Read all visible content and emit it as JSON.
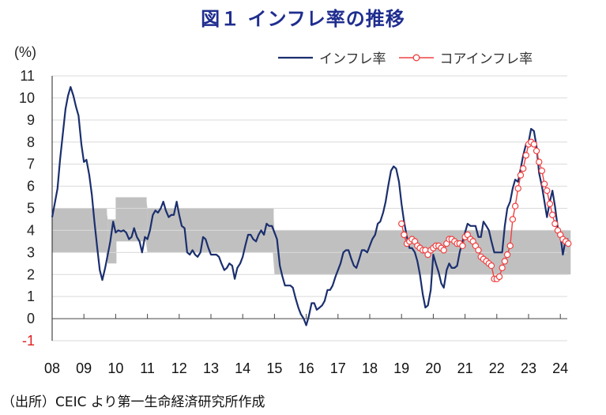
{
  "title": "図１ インフレ率の推移",
  "source": "（出所）CEIC より第一生命経済研究所作成",
  "colors": {
    "title": "#1f2d8f",
    "inflation": "#1b2f6e",
    "core": "#f04040",
    "band": "#c0c0c0",
    "grid": "#d9d9d9",
    "negative_tick": "#e02020"
  },
  "chart_data": {
    "type": "line",
    "title": "図１ インフレ率の推移",
    "ylabel": "(%)",
    "xlabel": "",
    "ylim": [
      -1,
      11
    ],
    "xlim": [
      2008,
      2024.35
    ],
    "grid": true,
    "legend_position": "top-right",
    "y_ticks": [
      "11",
      "10",
      "9",
      "8",
      "7",
      "6",
      "5",
      "4",
      "3",
      "2",
      "1",
      "0",
      "-1"
    ],
    "x_ticks": [
      "08",
      "09",
      "10",
      "11",
      "12",
      "13",
      "14",
      "15",
      "16",
      "17",
      "18",
      "19",
      "20",
      "21",
      "22",
      "23",
      "24"
    ],
    "target_band": {
      "label": "target range",
      "segments": [
        {
          "x0": 2008.0,
          "x1": 2009.7,
          "low": 3.0,
          "high": 5.0
        },
        {
          "x0": 2009.75,
          "x1": 2010.0,
          "low": 2.5,
          "high": 4.5
        },
        {
          "x0": 2010.0,
          "x1": 2010.95,
          "low": 3.5,
          "high": 5.5
        },
        {
          "x0": 2011.0,
          "x1": 2014.95,
          "low": 3.0,
          "high": 5.0
        },
        {
          "x0": 2015.0,
          "x1": 2024.3,
          "low": 2.0,
          "high": 4.0
        }
      ]
    },
    "series": [
      {
        "name": "インフレ率",
        "points": [
          [
            2008.0,
            4.6
          ],
          [
            2008.08,
            5.2
          ],
          [
            2008.17,
            5.9
          ],
          [
            2008.25,
            7.2
          ],
          [
            2008.33,
            8.3
          ],
          [
            2008.42,
            9.5
          ],
          [
            2008.5,
            10.1
          ],
          [
            2008.58,
            10.5
          ],
          [
            2008.67,
            10.1
          ],
          [
            2008.75,
            9.6
          ],
          [
            2008.83,
            9.2
          ],
          [
            2008.92,
            7.9
          ],
          [
            2009.0,
            7.1
          ],
          [
            2009.08,
            7.2
          ],
          [
            2009.17,
            6.5
          ],
          [
            2009.25,
            5.6
          ],
          [
            2009.33,
            4.4
          ],
          [
            2009.42,
            3.2
          ],
          [
            2009.5,
            2.2
          ],
          [
            2009.58,
            1.75
          ],
          [
            2009.67,
            2.3
          ],
          [
            2009.75,
            2.9
          ],
          [
            2009.83,
            3.5
          ],
          [
            2009.92,
            4.4
          ],
          [
            2010.0,
            3.9
          ],
          [
            2010.08,
            4.0
          ],
          [
            2010.17,
            3.95
          ],
          [
            2010.25,
            4.0
          ],
          [
            2010.33,
            3.9
          ],
          [
            2010.42,
            3.6
          ],
          [
            2010.5,
            3.7
          ],
          [
            2010.58,
            4.1
          ],
          [
            2010.67,
            3.7
          ],
          [
            2010.75,
            3.5
          ],
          [
            2010.83,
            3.0
          ],
          [
            2010.92,
            3.7
          ],
          [
            2011.0,
            3.6
          ],
          [
            2011.08,
            4.0
          ],
          [
            2011.17,
            4.7
          ],
          [
            2011.25,
            4.9
          ],
          [
            2011.33,
            4.8
          ],
          [
            2011.42,
            5.0
          ],
          [
            2011.5,
            5.3
          ],
          [
            2011.58,
            4.9
          ],
          [
            2011.67,
            4.6
          ],
          [
            2011.75,
            4.7
          ],
          [
            2011.83,
            4.7
          ],
          [
            2011.92,
            5.3
          ],
          [
            2012.0,
            4.7
          ],
          [
            2012.08,
            4.2
          ],
          [
            2012.17,
            4.1
          ],
          [
            2012.25,
            3.0
          ],
          [
            2012.33,
            2.9
          ],
          [
            2012.42,
            3.1
          ],
          [
            2012.5,
            2.9
          ],
          [
            2012.58,
            2.8
          ],
          [
            2012.67,
            3.0
          ],
          [
            2012.75,
            3.7
          ],
          [
            2012.83,
            3.6
          ],
          [
            2012.92,
            3.2
          ],
          [
            2013.0,
            2.9
          ],
          [
            2013.08,
            2.9
          ],
          [
            2013.17,
            2.9
          ],
          [
            2013.25,
            2.8
          ],
          [
            2013.33,
            2.5
          ],
          [
            2013.42,
            2.2
          ],
          [
            2013.5,
            2.3
          ],
          [
            2013.58,
            2.5
          ],
          [
            2013.67,
            2.4
          ],
          [
            2013.75,
            1.8
          ],
          [
            2013.83,
            2.3
          ],
          [
            2013.92,
            2.5
          ],
          [
            2014.0,
            2.8
          ],
          [
            2014.08,
            3.3
          ],
          [
            2014.17,
            3.8
          ],
          [
            2014.25,
            3.8
          ],
          [
            2014.33,
            3.6
          ],
          [
            2014.42,
            3.5
          ],
          [
            2014.5,
            3.8
          ],
          [
            2014.58,
            4.0
          ],
          [
            2014.67,
            3.8
          ],
          [
            2014.75,
            4.3
          ],
          [
            2014.83,
            4.2
          ],
          [
            2014.92,
            4.2
          ],
          [
            2015.0,
            3.9
          ],
          [
            2015.08,
            3.6
          ],
          [
            2015.17,
            2.4
          ],
          [
            2015.25,
            1.9
          ],
          [
            2015.33,
            1.5
          ],
          [
            2015.42,
            1.5
          ],
          [
            2015.5,
            1.5
          ],
          [
            2015.58,
            1.4
          ],
          [
            2015.67,
            0.9
          ],
          [
            2015.75,
            0.5
          ],
          [
            2015.83,
            0.2
          ],
          [
            2015.92,
            0.0
          ],
          [
            2016.0,
            -0.3
          ],
          [
            2016.08,
            0.1
          ],
          [
            2016.17,
            0.7
          ],
          [
            2016.25,
            0.7
          ],
          [
            2016.33,
            0.4
          ],
          [
            2016.42,
            0.5
          ],
          [
            2016.5,
            0.6
          ],
          [
            2016.58,
            0.8
          ],
          [
            2016.67,
            1.3
          ],
          [
            2016.75,
            1.3
          ],
          [
            2016.83,
            1.5
          ],
          [
            2016.92,
            1.9
          ],
          [
            2017.0,
            2.2
          ],
          [
            2017.08,
            2.5
          ],
          [
            2017.17,
            3.0
          ],
          [
            2017.25,
            3.1
          ],
          [
            2017.33,
            3.1
          ],
          [
            2017.42,
            2.7
          ],
          [
            2017.5,
            2.4
          ],
          [
            2017.58,
            2.3
          ],
          [
            2017.67,
            2.7
          ],
          [
            2017.75,
            3.1
          ],
          [
            2017.83,
            3.1
          ],
          [
            2017.92,
            3.0
          ],
          [
            2018.0,
            3.3
          ],
          [
            2018.08,
            3.6
          ],
          [
            2018.17,
            3.8
          ],
          [
            2018.25,
            4.3
          ],
          [
            2018.33,
            4.4
          ],
          [
            2018.42,
            4.8
          ],
          [
            2018.5,
            5.3
          ],
          [
            2018.58,
            6.0
          ],
          [
            2018.67,
            6.7
          ],
          [
            2018.75,
            6.9
          ],
          [
            2018.83,
            6.8
          ],
          [
            2018.92,
            6.2
          ],
          [
            2019.0,
            5.2
          ],
          [
            2019.08,
            4.4
          ],
          [
            2019.17,
            3.7
          ],
          [
            2019.25,
            3.2
          ],
          [
            2019.33,
            3.2
          ],
          [
            2019.42,
            3.0
          ],
          [
            2019.5,
            2.6
          ],
          [
            2019.58,
            2.0
          ],
          [
            2019.67,
            1.1
          ],
          [
            2019.75,
            0.5
          ],
          [
            2019.83,
            0.6
          ],
          [
            2019.92,
            1.3
          ],
          [
            2020.0,
            2.9
          ],
          [
            2020.08,
            2.5
          ],
          [
            2020.17,
            2.1
          ],
          [
            2020.25,
            1.6
          ],
          [
            2020.33,
            1.4
          ],
          [
            2020.42,
            2.2
          ],
          [
            2020.5,
            2.5
          ],
          [
            2020.58,
            2.3
          ],
          [
            2020.67,
            2.3
          ],
          [
            2020.75,
            2.4
          ],
          [
            2020.83,
            3.0
          ],
          [
            2020.92,
            3.5
          ],
          [
            2021.0,
            3.9
          ],
          [
            2021.08,
            4.3
          ],
          [
            2021.17,
            4.2
          ],
          [
            2021.25,
            4.2
          ],
          [
            2021.33,
            4.2
          ],
          [
            2021.42,
            3.7
          ],
          [
            2021.5,
            3.7
          ],
          [
            2021.58,
            4.4
          ],
          [
            2021.67,
            4.2
          ],
          [
            2021.75,
            4.0
          ],
          [
            2021.83,
            3.5
          ],
          [
            2021.92,
            3.0
          ],
          [
            2022.0,
            3.0
          ],
          [
            2022.08,
            3.0
          ],
          [
            2022.17,
            3.0
          ],
          [
            2022.25,
            4.2
          ],
          [
            2022.33,
            5.0
          ],
          [
            2022.42,
            5.3
          ],
          [
            2022.5,
            5.9
          ],
          [
            2022.58,
            6.3
          ],
          [
            2022.67,
            6.2
          ],
          [
            2022.75,
            6.8
          ],
          [
            2022.83,
            7.4
          ],
          [
            2022.92,
            7.9
          ],
          [
            2023.0,
            8.0
          ],
          [
            2023.08,
            8.6
          ],
          [
            2023.17,
            8.5
          ],
          [
            2023.25,
            7.8
          ],
          [
            2023.33,
            6.6
          ],
          [
            2023.42,
            6.0
          ],
          [
            2023.5,
            5.3
          ],
          [
            2023.58,
            4.6
          ],
          [
            2023.67,
            5.3
          ],
          [
            2023.75,
            5.8
          ],
          [
            2023.83,
            5.1
          ],
          [
            2023.92,
            4.1
          ],
          [
            2024.0,
            3.8
          ],
          [
            2024.08,
            2.9
          ],
          [
            2024.17,
            3.6
          ],
          [
            2024.25,
            3.6
          ]
        ]
      },
      {
        "name": "コアインフレ率",
        "points": [
          [
            2019.0,
            4.3
          ],
          [
            2019.08,
            3.8
          ],
          [
            2019.17,
            3.4
          ],
          [
            2019.25,
            3.5
          ],
          [
            2019.33,
            3.6
          ],
          [
            2019.42,
            3.5
          ],
          [
            2019.5,
            3.3
          ],
          [
            2019.58,
            3.2
          ],
          [
            2019.67,
            3.1
          ],
          [
            2019.75,
            3.1
          ],
          [
            2019.83,
            2.9
          ],
          [
            2019.92,
            3.1
          ],
          [
            2020.0,
            3.2
          ],
          [
            2020.08,
            3.3
          ],
          [
            2020.17,
            3.3
          ],
          [
            2020.25,
            3.2
          ],
          [
            2020.33,
            3.1
          ],
          [
            2020.42,
            3.4
          ],
          [
            2020.5,
            3.6
          ],
          [
            2020.58,
            3.6
          ],
          [
            2020.67,
            3.5
          ],
          [
            2020.75,
            3.4
          ],
          [
            2020.83,
            3.4
          ],
          [
            2020.92,
            3.3
          ],
          [
            2021.0,
            3.7
          ],
          [
            2021.08,
            3.8
          ],
          [
            2021.17,
            3.6
          ],
          [
            2021.25,
            3.5
          ],
          [
            2021.33,
            3.3
          ],
          [
            2021.42,
            3.1
          ],
          [
            2021.5,
            2.8
          ],
          [
            2021.58,
            2.7
          ],
          [
            2021.67,
            2.6
          ],
          [
            2021.75,
            2.5
          ],
          [
            2021.83,
            2.4
          ],
          [
            2021.92,
            1.8
          ],
          [
            2022.0,
            1.8
          ],
          [
            2022.08,
            1.9
          ],
          [
            2022.17,
            2.3
          ],
          [
            2022.25,
            2.6
          ],
          [
            2022.33,
            2.9
          ],
          [
            2022.42,
            3.3
          ],
          [
            2022.5,
            4.5
          ],
          [
            2022.58,
            5.1
          ],
          [
            2022.67,
            5.9
          ],
          [
            2022.75,
            6.5
          ],
          [
            2022.83,
            6.8
          ],
          [
            2022.92,
            7.4
          ],
          [
            2023.0,
            7.9
          ],
          [
            2023.08,
            8.0
          ],
          [
            2023.17,
            7.9
          ],
          [
            2023.25,
            7.6
          ],
          [
            2023.33,
            7.1
          ],
          [
            2023.42,
            6.7
          ],
          [
            2023.5,
            6.1
          ],
          [
            2023.58,
            5.8
          ],
          [
            2023.67,
            5.2
          ],
          [
            2023.75,
            4.7
          ],
          [
            2023.83,
            4.3
          ],
          [
            2023.92,
            4.0
          ],
          [
            2024.0,
            3.8
          ],
          [
            2024.08,
            3.6
          ],
          [
            2024.17,
            3.5
          ],
          [
            2024.25,
            3.4
          ]
        ]
      }
    ]
  }
}
